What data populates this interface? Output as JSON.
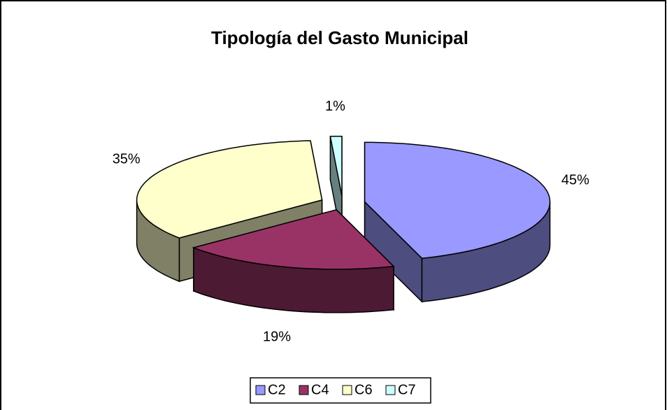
{
  "chart_data": {
    "type": "pie",
    "title": "Tipología del Gasto Municipal",
    "categories": [
      "C2",
      "C4",
      "C6",
      "C7"
    ],
    "values": [
      45,
      19,
      35,
      1
    ],
    "value_labels": [
      "45%",
      "19%",
      "35%",
      "1%"
    ],
    "colors": [
      "#9999ff",
      "#993366",
      "#ffffcc",
      "#ccffff"
    ],
    "legend": "bottom"
  }
}
